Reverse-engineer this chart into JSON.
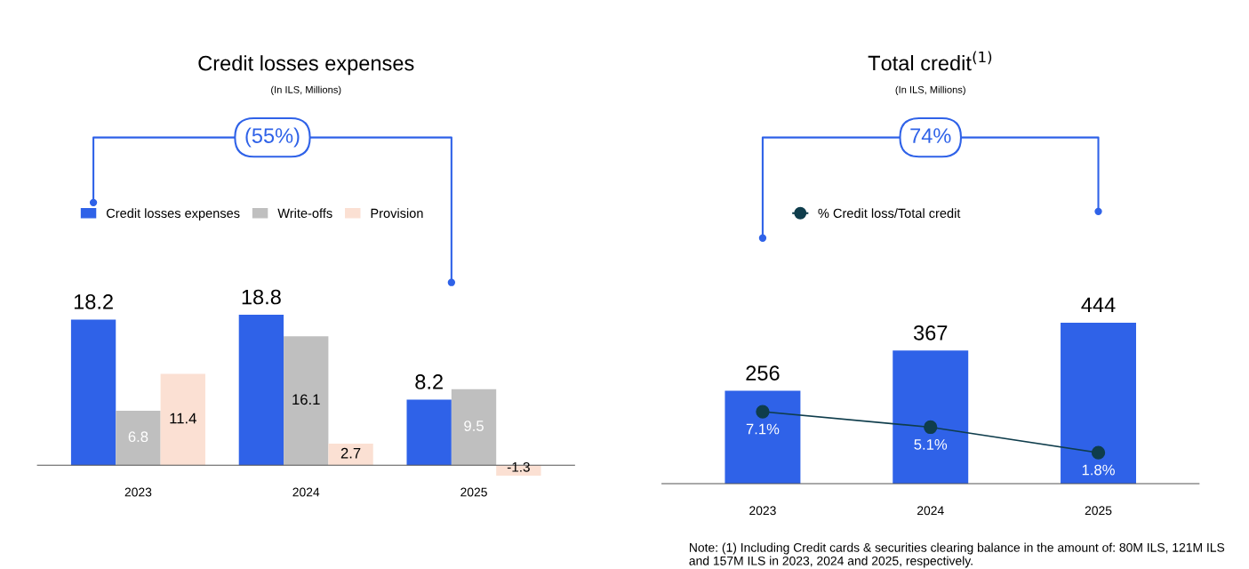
{
  "chart_data": [
    {
      "type": "bar",
      "title": "Credit losses expenses",
      "subtitle": "(In ILS, Millions)",
      "categories": [
        "2023",
        "2024",
        "2025"
      ],
      "series": [
        {
          "name": "Credit losses expenses",
          "color": "#2f62e8",
          "values": [
            18.2,
            18.8,
            8.2
          ],
          "value_labels": [
            "18.2",
            "18.8",
            "8.2"
          ]
        },
        {
          "name": "Write-offs",
          "color": "#bfbfbf",
          "values": [
            6.8,
            16.1,
            9.5
          ],
          "value_labels": [
            "6.8",
            "16.1",
            "9.5"
          ]
        },
        {
          "name": "Provision",
          "color": "#fbe0d3",
          "values": [
            11.4,
            2.7,
            -1.3
          ],
          "value_labels": [
            "11.4",
            "2.7",
            "-1.3"
          ]
        }
      ],
      "legend": "top left",
      "grid": false,
      "annotations": [
        "(55%)"
      ]
    },
    {
      "type": "bar",
      "title": "Total credit$^{(1)}$",
      "subtitle": "(In ILS, Millions)",
      "categories": [
        "2023",
        "2024",
        "2025"
      ],
      "series": [
        {
          "color": "#2f62e8",
          "values": [
            256,
            367,
            444
          ],
          "value_labels": [
            "256",
            "367",
            "444"
          ]
        },
        {
          "name": "% Credit loss/Total credit",
          "type": "line",
          "axis": "y2",
          "marker": "circle",
          "color": "#0f3d4c",
          "values": [
            7.1,
            5.1,
            1.8
          ],
          "value_labels": [
            "7.1%",
            "5.1%",
            "1.8%"
          ]
        }
      ],
      "legend": "top",
      "grid": false,
      "annotations": [
        "74%",
        "Note: (1) Including Credit cards & securities clearing balance in the amount of: 80M ILS, 121M ILS and 157M ILS in 2023, 2024 and 2025, respectively."
      ]
    }
  ]
}
